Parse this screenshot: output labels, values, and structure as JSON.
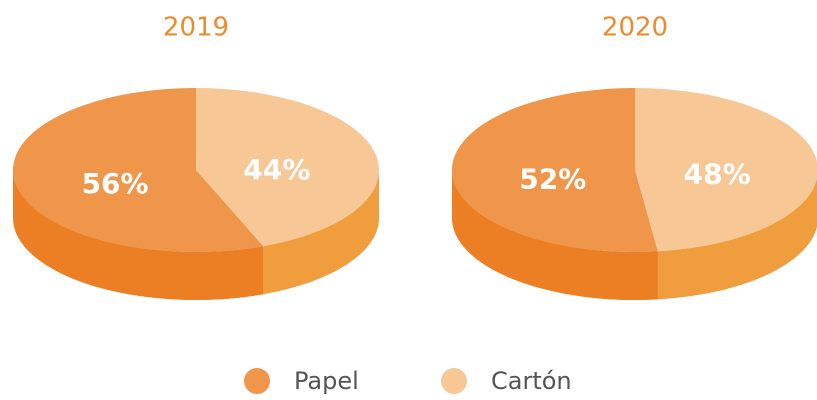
{
  "chart_data": [
    {
      "type": "pie",
      "title": "2019",
      "categories": [
        "Papel",
        "Cartón"
      ],
      "values": [
        56,
        44
      ],
      "value_labels": [
        "56%",
        "44%"
      ],
      "colors": [
        "#F0964A",
        "#F7C796"
      ]
    },
    {
      "type": "pie",
      "title": "2020",
      "categories": [
        "Papel",
        "Cartón"
      ],
      "values": [
        52,
        48
      ],
      "value_labels": [
        "52%",
        "48%"
      ],
      "colors": [
        "#F0964A",
        "#F7C796"
      ]
    }
  ]
}
